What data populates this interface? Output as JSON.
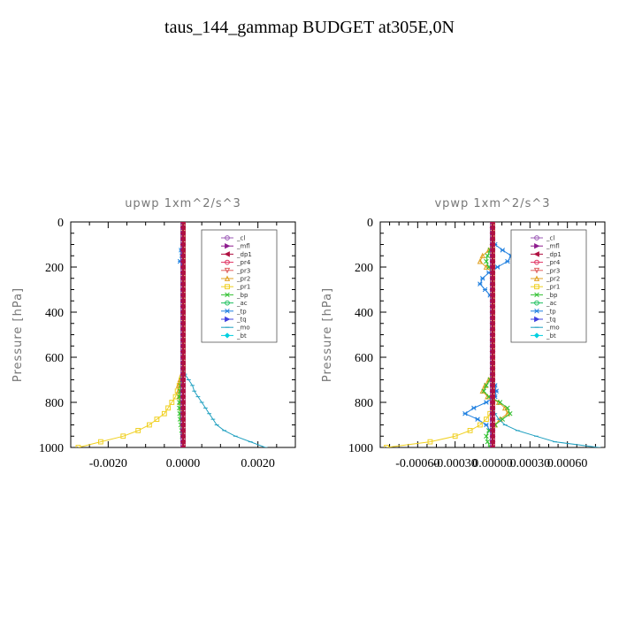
{
  "figure": {
    "title": "taus_144_gammap  BUDGET at305E,0N"
  },
  "legend_entries": [
    {
      "name": "_cl",
      "color": "#9b59b6",
      "marker": "circle"
    },
    {
      "name": "_mfl",
      "color": "#8e1c8e",
      "marker": "triangle-right"
    },
    {
      "name": "_dp1",
      "color": "#b01040",
      "marker": "triangle-left"
    },
    {
      "name": "_pr4",
      "color": "#e03060",
      "marker": "circle"
    },
    {
      "name": "_pr3",
      "color": "#e06060",
      "marker": "triangle-down"
    },
    {
      "name": "_pr2",
      "color": "#e0a020",
      "marker": "triangle-up"
    },
    {
      "name": "_pr1",
      "color": "#f0d020",
      "marker": "square"
    },
    {
      "name": "_bp",
      "color": "#30c030",
      "marker": "x"
    },
    {
      "name": "_ac",
      "color": "#20c060",
      "marker": "circle"
    },
    {
      "name": "_tp",
      "color": "#2080e0",
      "marker": "star"
    },
    {
      "name": "_tq",
      "color": "#4040e0",
      "marker": "triangle-right"
    },
    {
      "name": "_mo",
      "color": "#20a0c0",
      "marker": "dash"
    },
    {
      "name": "_bt",
      "color": "#00d0e0",
      "marker": "diamond"
    }
  ],
  "chart_data": [
    {
      "type": "line",
      "title": "upwp   1xm^2/s^3",
      "ylabel": "Pressure [hPa]",
      "xlim": [
        -0.003,
        0.003
      ],
      "ylim": [
        1000,
        0
      ],
      "xticks": [
        -0.002,
        0.0,
        0.002
      ],
      "xtick_labels": [
        "-0.0020",
        "0.0000",
        "0.0020"
      ],
      "yticks": [
        0,
        200,
        400,
        600,
        800,
        1000
      ],
      "ytick_labels": [
        "0",
        "200",
        "400",
        "600",
        "800",
        "1000"
      ],
      "legend_position": "top-right",
      "y": [
        0,
        25,
        50,
        75,
        100,
        125,
        150,
        175,
        200,
        225,
        250,
        275,
        300,
        325,
        350,
        375,
        400,
        425,
        450,
        475,
        500,
        525,
        550,
        575,
        600,
        625,
        650,
        675,
        700,
        725,
        750,
        775,
        800,
        825,
        850,
        875,
        900,
        925,
        950,
        975,
        1000
      ],
      "series": [
        {
          "name": "_pr1",
          "values": [
            0,
            0,
            0,
            0,
            0,
            0,
            0,
            0,
            0,
            0,
            0,
            0,
            0,
            0,
            0,
            0,
            0,
            0,
            0,
            0,
            0,
            0,
            0,
            0,
            0,
            0,
            0,
            0,
            -5e-05,
            -0.0001,
            -0.00015,
            -0.0002,
            -0.0003,
            -0.0004,
            -0.0005,
            -0.0007,
            -0.0009,
            -0.0012,
            -0.0016,
            -0.0022,
            -0.0028
          ]
        },
        {
          "name": "_pr2",
          "values": [
            0,
            0,
            0,
            0,
            0,
            0,
            0,
            0,
            0,
            0,
            0,
            0,
            0,
            0,
            0,
            0,
            0,
            0,
            0,
            0,
            0,
            0,
            0,
            0,
            0,
            0,
            0,
            -3e-05,
            -8e-05,
            -0.00012,
            -0.00012,
            -0.0001,
            -8e-05,
            -5e-05,
            -3e-05,
            -2e-05,
            -1e-05,
            0,
            0,
            0,
            0
          ]
        },
        {
          "name": "_bp",
          "values": [
            0,
            0,
            0,
            0,
            0,
            0,
            0,
            0,
            0,
            0,
            0,
            0,
            0,
            0,
            0,
            0,
            0,
            0,
            0,
            0,
            0,
            0,
            0,
            0,
            0,
            0,
            0,
            0,
            -3e-05,
            -6e-05,
            -8e-05,
            -0.0001,
            -0.0001,
            -0.0001,
            -9e-05,
            -8e-05,
            -6e-05,
            -4e-05,
            -2e-05,
            0,
            0
          ]
        },
        {
          "name": "_mo",
          "values": [
            0,
            0,
            0,
            0,
            0,
            0,
            0,
            0,
            0,
            0,
            0,
            0,
            0,
            0,
            0,
            0,
            0,
            0,
            0,
            0,
            0,
            0,
            0,
            0,
            0,
            0,
            0,
            5e-05,
            0.00015,
            0.00025,
            0.0003,
            0.0004,
            0.0005,
            0.0006,
            0.0007,
            0.0008,
            0.0009,
            0.0011,
            0.0014,
            0.0018,
            0.0022
          ]
        },
        {
          "name": "_tp",
          "values": [
            0,
            0,
            0,
            0,
            0,
            -5e-05,
            -3e-05,
            -8e-05,
            0,
            0,
            0,
            0,
            0,
            0,
            0,
            0,
            0,
            0,
            0,
            0,
            0,
            0,
            0,
            0,
            0,
            0,
            0,
            0,
            0,
            0,
            0,
            0,
            0,
            0,
            0,
            0,
            0,
            0,
            0,
            0,
            0
          ]
        },
        {
          "name": "_mfl",
          "values": [
            0,
            0,
            0,
            0,
            0,
            0,
            0,
            0,
            0,
            0,
            0,
            0,
            0,
            0,
            0,
            0,
            0,
            0,
            0,
            0,
            0,
            0,
            0,
            0,
            0,
            0,
            0,
            0,
            0,
            0,
            0,
            0,
            0,
            0,
            0,
            0,
            0,
            0,
            0,
            0,
            0
          ]
        },
        {
          "name": "_dp1",
          "values": [
            0,
            0,
            0,
            0,
            0,
            0,
            0,
            0,
            0,
            0,
            0,
            0,
            0,
            0,
            0,
            0,
            0,
            0,
            0,
            0,
            0,
            0,
            0,
            0,
            0,
            0,
            0,
            0,
            0,
            0,
            0,
            0,
            0,
            0,
            0,
            0,
            0,
            0,
            0,
            0,
            0
          ]
        }
      ]
    },
    {
      "type": "line",
      "title": "vpwp   1xm^2/s^3",
      "ylabel": "Pressure [hPa]",
      "xlim": [
        -0.0009,
        0.0009
      ],
      "ylim": [
        1000,
        0
      ],
      "xticks": [
        -0.0006,
        -0.0003,
        0.0,
        0.0003,
        0.0006
      ],
      "xtick_labels": [
        "-0.00060",
        "-0.00030",
        "0.00000",
        "0.00030",
        "0.00060"
      ],
      "yticks": [
        0,
        200,
        400,
        600,
        800,
        1000
      ],
      "ytick_labels": [
        "0",
        "200",
        "400",
        "600",
        "800",
        "1000"
      ],
      "legend_position": "top-right",
      "y": [
        0,
        25,
        50,
        75,
        100,
        125,
        150,
        175,
        200,
        225,
        250,
        275,
        300,
        325,
        350,
        375,
        400,
        425,
        450,
        475,
        500,
        525,
        550,
        575,
        600,
        625,
        650,
        675,
        700,
        725,
        750,
        775,
        800,
        825,
        850,
        875,
        900,
        925,
        950,
        975,
        1000
      ],
      "series": [
        {
          "name": "_tp",
          "values": [
            0,
            0,
            0,
            0,
            2e-05,
            8e-05,
            0.00015,
            0.00012,
            4e-05,
            -3e-05,
            -8e-05,
            -0.0001,
            -6e-05,
            -2e-05,
            0,
            0,
            0,
            0,
            0,
            0,
            0,
            0,
            0,
            0,
            0,
            0,
            0,
            0,
            0,
            2e-05,
            3e-05,
            2e-05,
            -5e-05,
            -0.00015,
            -0.00022,
            -0.00012,
            -5e-05,
            -2e-05,
            0,
            0,
            0
          ]
        },
        {
          "name": "_pr2",
          "values": [
            0,
            0,
            0,
            0,
            0,
            -3e-05,
            -8e-05,
            -0.0001,
            -5e-05,
            0,
            0,
            0,
            0,
            0,
            0,
            0,
            0,
            0,
            0,
            0,
            0,
            0,
            0,
            0,
            0,
            0,
            0,
            0,
            -3e-05,
            -6e-05,
            -8e-05,
            -4e-05,
            5e-05,
            0.0001,
            0.00012,
            6e-05,
            2e-05,
            0,
            0,
            0,
            0
          ]
        },
        {
          "name": "_bp",
          "values": [
            0,
            0,
            0,
            0,
            0,
            -2e-05,
            -4e-05,
            -5e-05,
            -3e-05,
            0,
            0,
            0,
            0,
            0,
            0,
            0,
            0,
            0,
            0,
            0,
            0,
            0,
            0,
            0,
            0,
            0,
            0,
            0,
            -2e-05,
            -5e-05,
            -7e-05,
            -3e-05,
            6e-05,
            0.00012,
            0.00014,
            8e-05,
            2e-05,
            -3e-05,
            -5e-05,
            -4e-05,
            -2e-05
          ]
        },
        {
          "name": "_pr1",
          "values": [
            0,
            0,
            0,
            0,
            0,
            0,
            0,
            0,
            0,
            0,
            0,
            0,
            0,
            0,
            0,
            0,
            0,
            0,
            0,
            0,
            0,
            0,
            0,
            0,
            0,
            0,
            0,
            0,
            0,
            0,
            0,
            0,
            0,
            0,
            -2e-05,
            -5e-05,
            -0.0001,
            -0.00018,
            -0.0003,
            -0.0005,
            -0.00085
          ]
        },
        {
          "name": "_mo",
          "values": [
            0,
            0,
            0,
            0,
            0,
            0,
            0,
            0,
            0,
            0,
            0,
            0,
            0,
            0,
            0,
            0,
            0,
            0,
            0,
            0,
            0,
            0,
            0,
            0,
            0,
            0,
            0,
            0,
            0,
            0,
            0,
            0,
            0,
            0,
            2e-05,
            5e-05,
            0.0001,
            0.0002,
            0.00035,
            0.0005,
            0.00085
          ]
        },
        {
          "name": "_mfl",
          "values": [
            0,
            0,
            0,
            0,
            0,
            0,
            0,
            0,
            0,
            0,
            0,
            0,
            0,
            0,
            0,
            0,
            0,
            0,
            0,
            0,
            0,
            0,
            0,
            0,
            0,
            0,
            0,
            0,
            0,
            0,
            0,
            0,
            0,
            0,
            0,
            0,
            0,
            0,
            0,
            0,
            0
          ]
        },
        {
          "name": "_dp1",
          "values": [
            0,
            0,
            0,
            0,
            0,
            0,
            0,
            0,
            0,
            0,
            0,
            0,
            0,
            0,
            0,
            0,
            0,
            0,
            0,
            0,
            0,
            0,
            0,
            0,
            0,
            0,
            0,
            0,
            0,
            0,
            0,
            0,
            0,
            0,
            0,
            0,
            0,
            0,
            0,
            0,
            0
          ]
        }
      ]
    }
  ]
}
